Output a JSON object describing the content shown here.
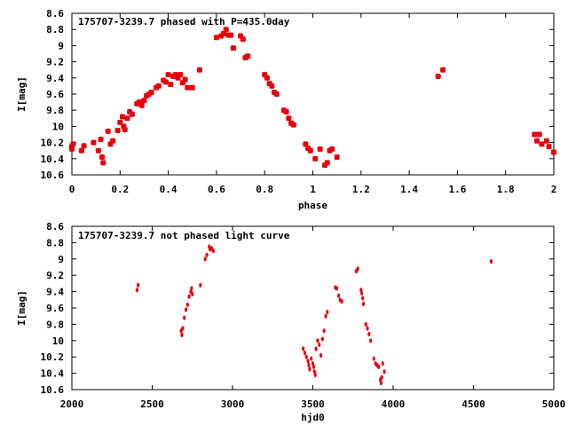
{
  "colors": {
    "points": "#e8000b",
    "axes": "#000000",
    "background": "#ffffff"
  },
  "chart_data": [
    {
      "type": "scatter",
      "title": "175707-3239.7 phased with P=435.0day",
      "xlabel": "phase",
      "ylabel": "I[mag]",
      "xlim": [
        0,
        2
      ],
      "ylim": [
        8.6,
        10.6
      ],
      "y_inverted": true,
      "grid": false,
      "xticks": [
        "0",
        "0.2",
        "0.4",
        "0.6",
        "0.8",
        "1",
        "1.2",
        "1.4",
        "1.6",
        "1.8",
        "2"
      ],
      "yticks": [
        "8.6",
        "8.8",
        "9",
        "9.2",
        "9.4",
        "9.6",
        "9.8",
        "10",
        "10.2",
        "10.4",
        "10.6"
      ],
      "marker": "large",
      "points": [
        [
          0.0,
          10.25
        ],
        [
          0.0,
          10.28
        ],
        [
          0.005,
          10.22
        ],
        [
          0.04,
          10.3
        ],
        [
          0.05,
          10.24
        ],
        [
          0.09,
          10.2
        ],
        [
          0.11,
          10.3
        ],
        [
          0.12,
          10.16
        ],
        [
          0.125,
          10.38
        ],
        [
          0.13,
          10.45
        ],
        [
          0.15,
          10.06
        ],
        [
          0.16,
          10.22
        ],
        [
          0.17,
          10.18
        ],
        [
          0.19,
          10.05
        ],
        [
          0.2,
          9.95
        ],
        [
          0.21,
          9.88
        ],
        [
          0.215,
          10.0
        ],
        [
          0.22,
          10.04
        ],
        [
          0.23,
          9.9
        ],
        [
          0.24,
          9.82
        ],
        [
          0.25,
          9.85
        ],
        [
          0.27,
          9.72
        ],
        [
          0.28,
          9.7
        ],
        [
          0.29,
          9.74
        ],
        [
          0.3,
          9.68
        ],
        [
          0.31,
          9.62
        ],
        [
          0.32,
          9.6
        ],
        [
          0.33,
          9.58
        ],
        [
          0.35,
          9.52
        ],
        [
          0.36,
          9.5
        ],
        [
          0.38,
          9.43
        ],
        [
          0.39,
          9.45
        ],
        [
          0.4,
          9.36
        ],
        [
          0.41,
          9.48
        ],
        [
          0.42,
          9.38
        ],
        [
          0.43,
          9.36
        ],
        [
          0.44,
          9.4
        ],
        [
          0.45,
          9.36
        ],
        [
          0.46,
          9.46
        ],
        [
          0.47,
          9.42
        ],
        [
          0.48,
          9.52
        ],
        [
          0.5,
          9.52
        ],
        [
          0.53,
          9.3
        ],
        [
          0.6,
          8.9
        ],
        [
          0.62,
          8.88
        ],
        [
          0.63,
          8.85
        ],
        [
          0.64,
          8.8
        ],
        [
          0.65,
          8.87
        ],
        [
          0.66,
          8.87
        ],
        [
          0.67,
          9.03
        ],
        [
          0.7,
          8.88
        ],
        [
          0.71,
          8.92
        ],
        [
          0.72,
          9.15
        ],
        [
          0.73,
          9.13
        ],
        [
          0.8,
          9.36
        ],
        [
          0.81,
          9.4
        ],
        [
          0.82,
          9.47
        ],
        [
          0.83,
          9.5
        ],
        [
          0.84,
          9.58
        ],
        [
          0.85,
          9.6
        ],
        [
          0.88,
          9.8
        ],
        [
          0.89,
          9.82
        ],
        [
          0.9,
          9.9
        ],
        [
          0.91,
          9.96
        ],
        [
          0.92,
          9.98
        ],
        [
          0.97,
          10.22
        ],
        [
          0.98,
          10.27
        ],
        [
          0.99,
          10.3
        ],
        [
          1.01,
          10.4
        ],
        [
          1.03,
          10.28
        ],
        [
          1.05,
          10.48
        ],
        [
          1.06,
          10.45
        ],
        [
          1.07,
          10.3
        ],
        [
          1.08,
          10.28
        ],
        [
          1.1,
          10.38
        ],
        [
          1.52,
          9.38
        ],
        [
          1.54,
          9.3
        ],
        [
          1.92,
          10.1
        ],
        [
          1.93,
          10.18
        ],
        [
          1.94,
          10.1
        ],
        [
          1.95,
          10.22
        ],
        [
          1.97,
          10.18
        ],
        [
          1.98,
          10.25
        ],
        [
          2.0,
          10.32
        ]
      ]
    },
    {
      "type": "scatter",
      "title": "175707-3239.7 not phased light curve",
      "xlabel": "hjd0",
      "ylabel": "I[mag]",
      "xlim": [
        2000,
        5000
      ],
      "ylim": [
        8.6,
        10.6
      ],
      "y_inverted": true,
      "grid": false,
      "xticks": [
        "2000",
        "2500",
        "3000",
        "3500",
        "4000",
        "4500",
        "5000"
      ],
      "yticks": [
        "8.6",
        "8.8",
        "9",
        "9.2",
        "9.4",
        "9.6",
        "9.8",
        "10",
        "10.2",
        "10.4",
        "10.6"
      ],
      "marker": "small",
      "points": [
        [
          2405,
          9.38
        ],
        [
          2412,
          9.32
        ],
        [
          2680,
          9.88
        ],
        [
          2685,
          9.93
        ],
        [
          2690,
          9.85
        ],
        [
          2700,
          9.72
        ],
        [
          2710,
          9.62
        ],
        [
          2720,
          9.56
        ],
        [
          2730,
          9.46
        ],
        [
          2740,
          9.4
        ],
        [
          2745,
          9.36
        ],
        [
          2750,
          9.43
        ],
        [
          2800,
          9.32
        ],
        [
          2830,
          9.0
        ],
        [
          2840,
          8.95
        ],
        [
          2855,
          8.85
        ],
        [
          2860,
          8.88
        ],
        [
          2870,
          8.87
        ],
        [
          2880,
          8.9
        ],
        [
          3440,
          10.1
        ],
        [
          3450,
          10.15
        ],
        [
          3460,
          10.2
        ],
        [
          3470,
          10.25
        ],
        [
          3475,
          10.3
        ],
        [
          3480,
          10.35
        ],
        [
          3490,
          10.22
        ],
        [
          3500,
          10.28
        ],
        [
          3505,
          10.32
        ],
        [
          3510,
          10.38
        ],
        [
          3515,
          10.42
        ],
        [
          3520,
          10.1
        ],
        [
          3530,
          10.0
        ],
        [
          3540,
          10.05
        ],
        [
          3550,
          10.18
        ],
        [
          3560,
          9.98
        ],
        [
          3570,
          9.88
        ],
        [
          3580,
          9.7
        ],
        [
          3590,
          9.65
        ],
        [
          3640,
          9.35
        ],
        [
          3650,
          9.36
        ],
        [
          3660,
          9.45
        ],
        [
          3670,
          9.5
        ],
        [
          3680,
          9.52
        ],
        [
          3770,
          9.15
        ],
        [
          3780,
          9.12
        ],
        [
          3800,
          9.38
        ],
        [
          3805,
          9.42
        ],
        [
          3810,
          9.48
        ],
        [
          3815,
          9.55
        ],
        [
          3830,
          9.8
        ],
        [
          3840,
          9.85
        ],
        [
          3850,
          9.92
        ],
        [
          3860,
          10.0
        ],
        [
          3880,
          10.22
        ],
        [
          3890,
          10.28
        ],
        [
          3900,
          10.3
        ],
        [
          3910,
          10.32
        ],
        [
          3920,
          10.48
        ],
        [
          3925,
          10.52
        ],
        [
          3930,
          10.45
        ],
        [
          3935,
          10.28
        ],
        [
          3945,
          10.38
        ],
        [
          4610,
          9.03
        ]
      ]
    }
  ]
}
